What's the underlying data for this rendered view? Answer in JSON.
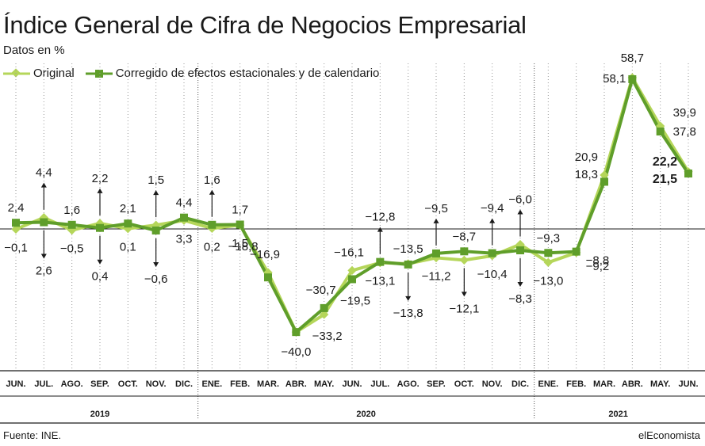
{
  "title": "Índice General de Cifra de Negocios Empresarial",
  "subtitle": "Datos en %",
  "source": "Fuente: INE.",
  "brand": "elEconomista",
  "colors": {
    "original": "#b5d65a",
    "corrected": "#5f9e2a",
    "axis": "#1a1a1a",
    "grid": "#9a9a9a"
  },
  "chart_data": {
    "type": "line",
    "title": "Índice General de Cifra de Negocios Empresarial",
    "ylabel": "Datos en %",
    "ylim": [
      -45,
      65
    ],
    "grid": "vertical dotted",
    "legend_position": "top-left",
    "categories": [
      "JUN.",
      "JUL.",
      "AGO.",
      "SEP.",
      "OCT.",
      "NOV.",
      "DIC.",
      "ENE.",
      "FEB.",
      "MAR.",
      "ABR.",
      "MAY.",
      "JUN.",
      "JUL.",
      "AGO.",
      "SEP.",
      "OCT.",
      "NOV.",
      "DIC.",
      "ENE.",
      "FEB.",
      "MAR.",
      "ABR.",
      "MAY.",
      "JUN."
    ],
    "years": [
      {
        "label": "2019",
        "start": 0,
        "end": 6
      },
      {
        "label": "2020",
        "start": 7,
        "end": 18
      },
      {
        "label": "2021",
        "start": 19,
        "end": 24
      }
    ],
    "series": [
      {
        "name": "Original",
        "values": [
          -0.1,
          4.4,
          -0.5,
          2.2,
          0.1,
          1.5,
          3.3,
          0.2,
          1.5,
          -16.9,
          -40.0,
          -33.2,
          -16.1,
          -13.1,
          -13.5,
          -11.2,
          -12.1,
          -10.4,
          -6.0,
          -13.0,
          -9.2,
          20.9,
          58.7,
          39.9,
          22.2
        ]
      },
      {
        "name": "Corregido de efectos estacionales y de calendario",
        "values": [
          2.4,
          2.6,
          1.6,
          0.4,
          2.1,
          -0.6,
          4.4,
          1.6,
          1.7,
          -18.8,
          -40.0,
          -30.7,
          -19.5,
          -12.8,
          -13.8,
          -9.5,
          -8.7,
          -9.4,
          -8.3,
          -9.3,
          -8.8,
          18.3,
          58.1,
          37.8,
          21.5
        ]
      }
    ],
    "labels": [
      {
        "i": 0,
        "text": "2,4",
        "pos": "above",
        "arrow": ""
      },
      {
        "i": 0,
        "text": "−0,1",
        "pos": "below",
        "arrow": ""
      },
      {
        "i": 1,
        "text": "4,4",
        "pos": "above",
        "arrow": "up"
      },
      {
        "i": 1,
        "text": "2,6",
        "pos": "below",
        "arrow": "down"
      },
      {
        "i": 2,
        "text": "1,6",
        "pos": "above",
        "arrow": ""
      },
      {
        "i": 2,
        "text": "−0,5",
        "pos": "below",
        "arrow": ""
      },
      {
        "i": 3,
        "text": "2,2",
        "pos": "above",
        "arrow": "up"
      },
      {
        "i": 3,
        "text": "0,4",
        "pos": "below",
        "arrow": "down"
      },
      {
        "i": 4,
        "text": "2,1",
        "pos": "above",
        "arrow": ""
      },
      {
        "i": 4,
        "text": "0,1",
        "pos": "below",
        "arrow": ""
      },
      {
        "i": 5,
        "text": "1,5",
        "pos": "above",
        "arrow": "up"
      },
      {
        "i": 5,
        "text": "−0,6",
        "pos": "below",
        "arrow": "down"
      },
      {
        "i": 6,
        "text": "4,4",
        "pos": "above",
        "arrow": ""
      },
      {
        "i": 6,
        "text": "3,3",
        "pos": "below",
        "arrow": ""
      },
      {
        "i": 7,
        "text": "1,6",
        "pos": "above",
        "arrow": "up"
      },
      {
        "i": 7,
        "text": "0,2",
        "pos": "below",
        "arrow": ""
      },
      {
        "i": 8,
        "text": "1,7",
        "pos": "above",
        "arrow": ""
      },
      {
        "i": 8,
        "text": "1,5",
        "pos": "below",
        "arrow": ""
      },
      {
        "i": 8,
        "text": "−18,8",
        "pos": "lower",
        "arrow": ""
      },
      {
        "i": 9,
        "text": "−16,9",
        "pos": "upper",
        "arrow": ""
      },
      {
        "i": 10,
        "text": "−40,0",
        "pos": "bottom",
        "arrow": ""
      },
      {
        "i": 11,
        "text": "−30,7",
        "pos": "upper",
        "arrow": ""
      },
      {
        "i": 11,
        "text": "−33,2",
        "pos": "lower",
        "arrow": ""
      },
      {
        "i": 12,
        "text": "−16,1",
        "pos": "upper",
        "arrow": ""
      },
      {
        "i": 12,
        "text": "−19,5",
        "pos": "lower",
        "arrow": ""
      },
      {
        "i": 13,
        "text": "−12,8",
        "pos": "above",
        "arrow": "up"
      },
      {
        "i": 13,
        "text": "−13,1",
        "pos": "below",
        "arrow": ""
      },
      {
        "i": 14,
        "text": "−13,5",
        "pos": "above",
        "arrow": ""
      },
      {
        "i": 14,
        "text": "−13,8",
        "pos": "below",
        "arrow": "down"
      },
      {
        "i": 15,
        "text": "−9,5",
        "pos": "above",
        "arrow": "up"
      },
      {
        "i": 15,
        "text": "−11,2",
        "pos": "below",
        "arrow": ""
      },
      {
        "i": 16,
        "text": "−8,7",
        "pos": "above",
        "arrow": ""
      },
      {
        "i": 16,
        "text": "−12,1",
        "pos": "below",
        "arrow": "down"
      },
      {
        "i": 17,
        "text": "−9,4",
        "pos": "above",
        "arrow": "up"
      },
      {
        "i": 17,
        "text": "−10,4",
        "pos": "below",
        "arrow": ""
      },
      {
        "i": 18,
        "text": "−6,0",
        "pos": "above",
        "arrow": "up"
      },
      {
        "i": 18,
        "text": "−8,3",
        "pos": "below",
        "arrow": "down"
      },
      {
        "i": 19,
        "text": "−9,3",
        "pos": "above",
        "arrow": ""
      },
      {
        "i": 19,
        "text": "−13,0",
        "pos": "below",
        "arrow": ""
      },
      {
        "i": 20,
        "text": "−8,8",
        "pos": "right",
        "arrow": ""
      },
      {
        "i": 20,
        "text": "−9,2",
        "pos": "below-right",
        "arrow": ""
      },
      {
        "i": 21,
        "text": "20,9",
        "pos": "left-upper",
        "arrow": ""
      },
      {
        "i": 21,
        "text": "18,3",
        "pos": "left-lower",
        "arrow": ""
      },
      {
        "i": 22,
        "text": "58,7",
        "pos": "top",
        "arrow": ""
      },
      {
        "i": 22,
        "text": "58,1",
        "pos": "left",
        "arrow": ""
      },
      {
        "i": 23,
        "text": "39,9",
        "pos": "right-upper",
        "arrow": ""
      },
      {
        "i": 23,
        "text": "37,8",
        "pos": "right-lower",
        "arrow": ""
      },
      {
        "i": 24,
        "text": "22,2",
        "pos": "bold-upper",
        "arrow": ""
      },
      {
        "i": 24,
        "text": "21,5",
        "pos": "bold-lower",
        "arrow": ""
      }
    ]
  }
}
